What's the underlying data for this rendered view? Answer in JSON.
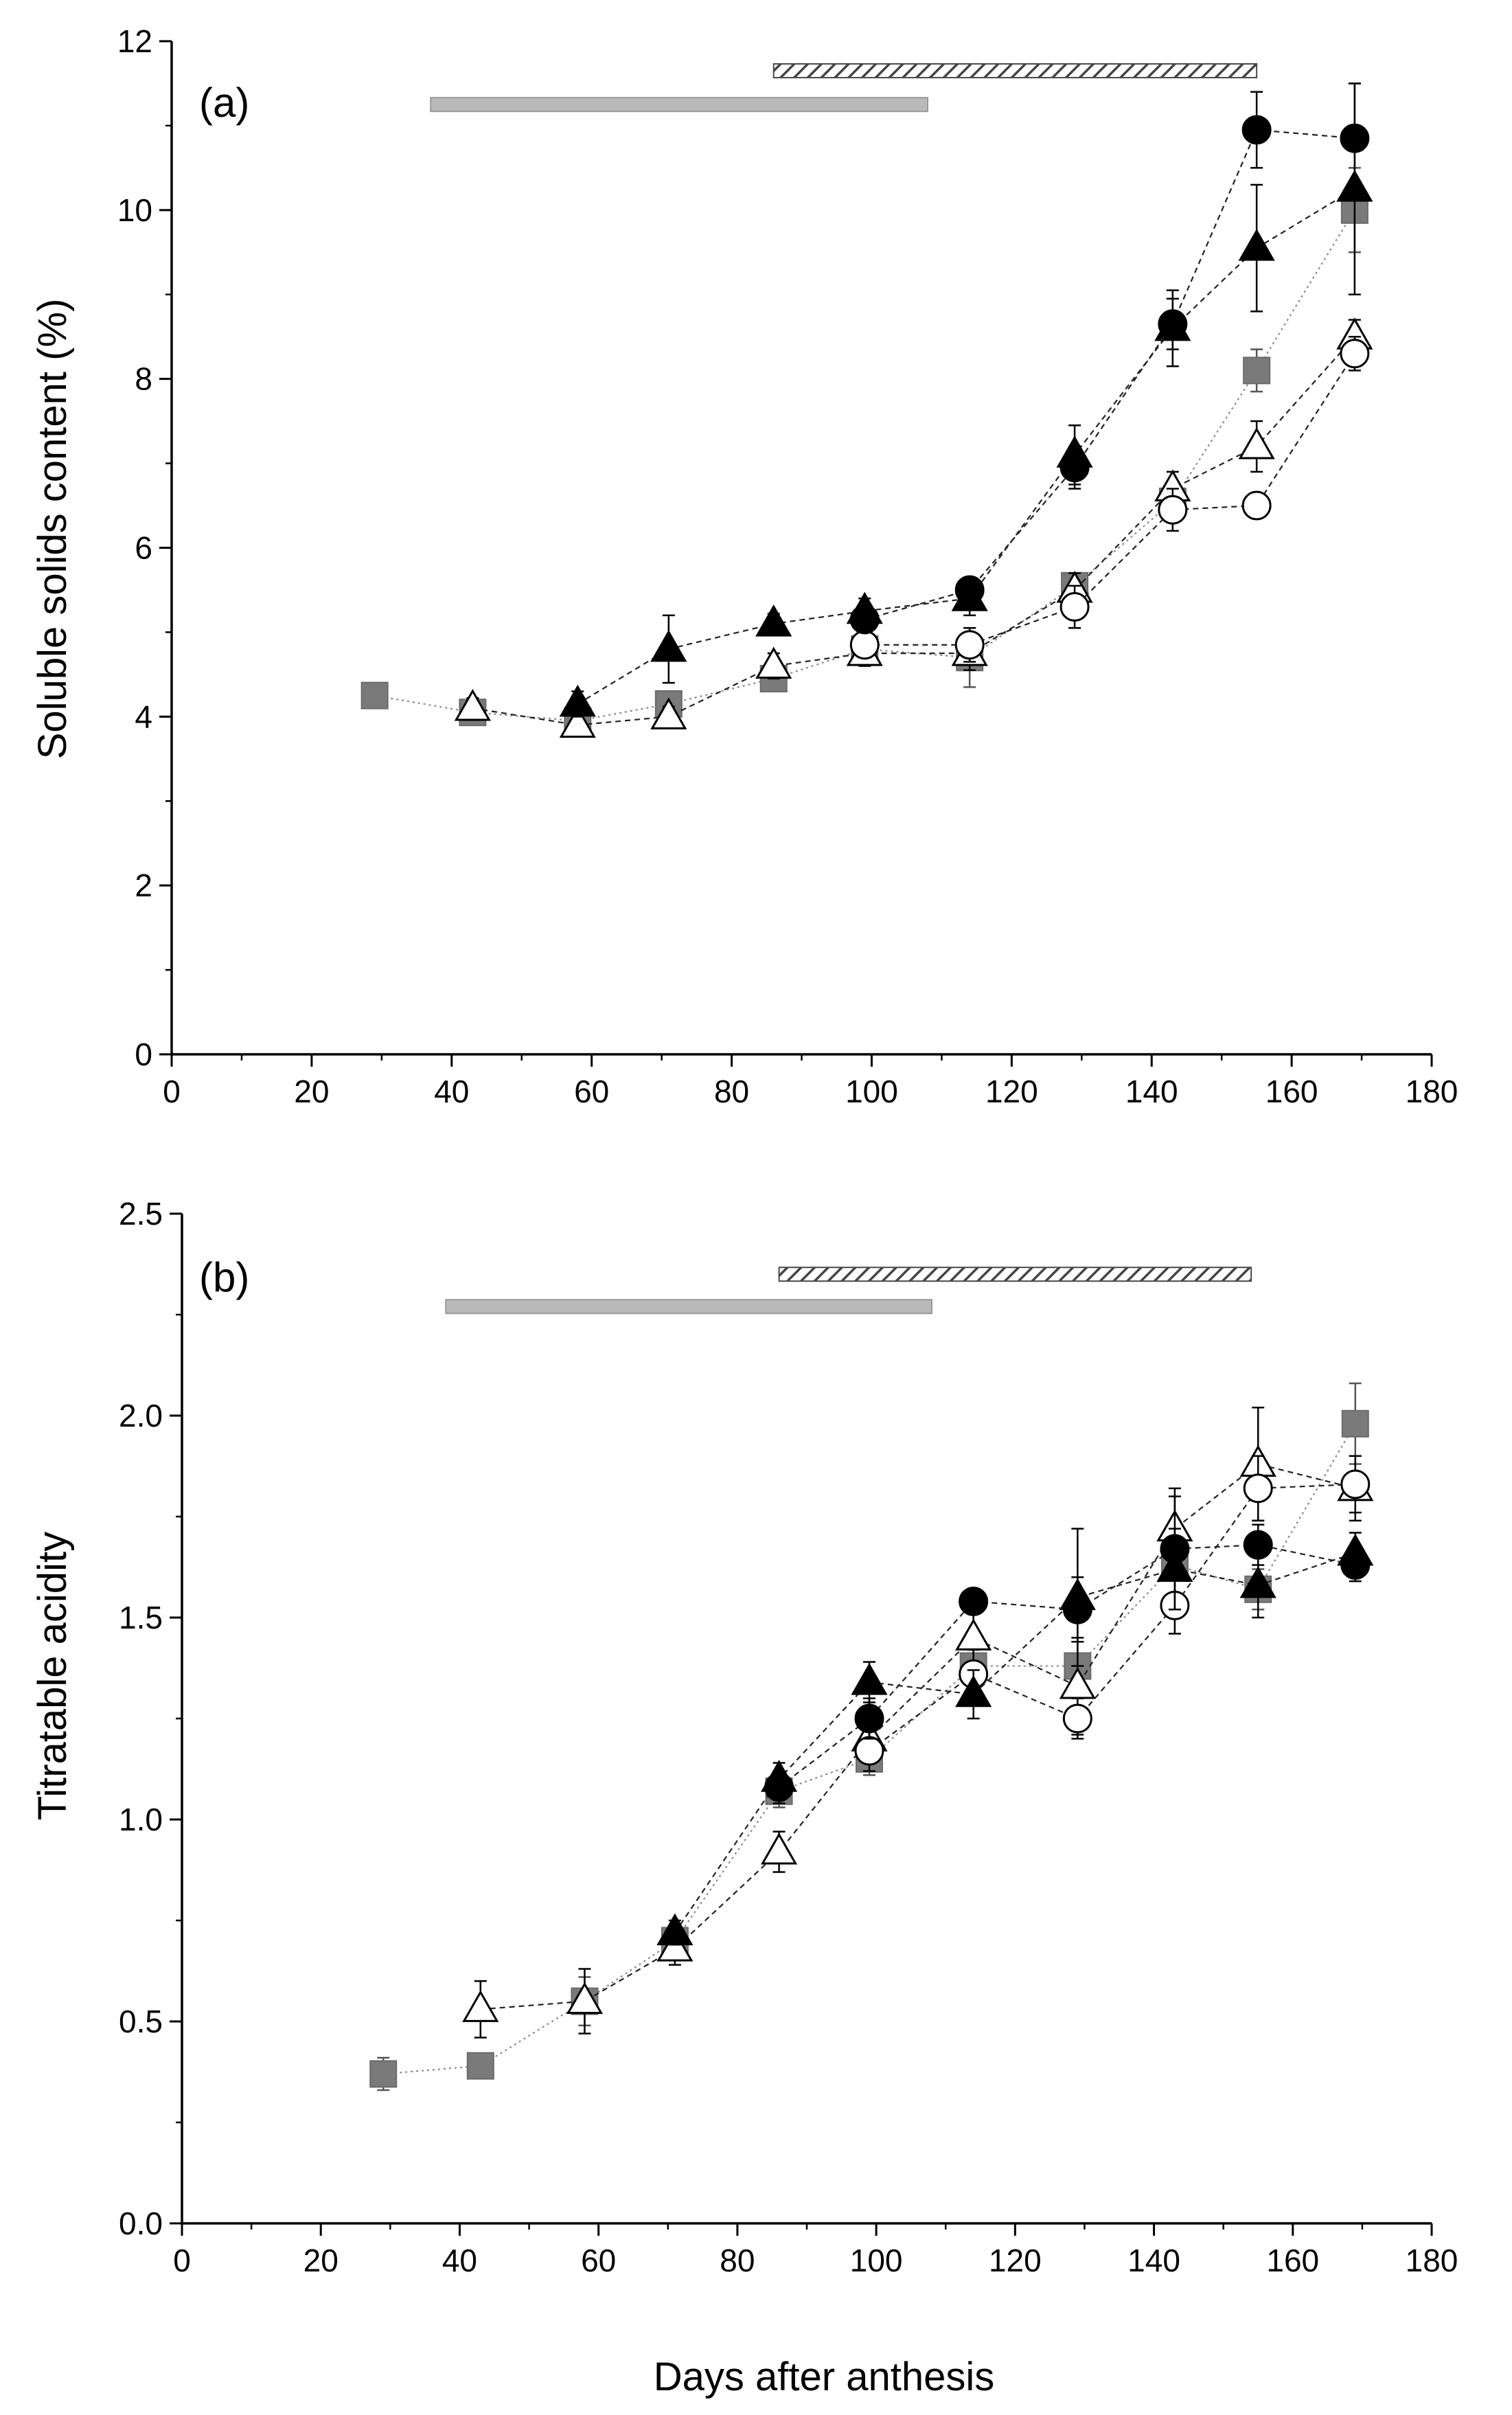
{
  "figure": {
    "xlabel": "Days after anthesis"
  },
  "chart_data": [
    {
      "type": "line",
      "panel_label": "(a)",
      "title": "",
      "xlabel": "",
      "ylabel": "Soluble solids content (%)",
      "xlim": [
        0,
        180
      ],
      "ylim": [
        0,
        12
      ],
      "xticks": [
        "0",
        "20",
        "40",
        "60",
        "80",
        "100",
        "120",
        "140",
        "160",
        "180"
      ],
      "yticks": [
        "0",
        "2",
        "4",
        "6",
        "8",
        "10",
        "12"
      ],
      "x_minor_step": 10,
      "y_minor_step": 1,
      "grid": false,
      "legend": "none",
      "bars": [
        {
          "style": "gray-solid",
          "x_start": 37,
          "x_end": 108,
          "y": 11.25,
          "color": "#b9b9b9"
        },
        {
          "style": "hatched",
          "x_start": 86,
          "x_end": 155,
          "y": 11.65,
          "color": "#4a4a4a"
        }
      ],
      "series": [
        {
          "marker": "square-gray",
          "color": "#7a7a7a",
          "x": [
            29,
            43,
            58,
            71,
            86,
            99,
            114,
            129,
            143,
            155,
            169
          ],
          "y": [
            4.25,
            4.05,
            3.95,
            4.15,
            4.45,
            4.8,
            4.7,
            5.55,
            6.55,
            8.1,
            10.0
          ],
          "err": [
            0.12,
            0.1,
            0.12,
            0.15,
            0.12,
            0.15,
            0.35,
            0.15,
            0.2,
            0.25,
            0.5
          ]
        },
        {
          "marker": "triangle-open",
          "color": "#000000",
          "x": [
            43,
            58,
            71,
            86,
            99,
            114,
            129,
            143,
            155,
            169
          ],
          "y": [
            4.1,
            3.9,
            4.0,
            4.6,
            4.75,
            4.75,
            5.5,
            6.7,
            7.2,
            8.5
          ],
          "err": [
            0.12,
            0.12,
            0.12,
            0.15,
            0.15,
            0.2,
            0.2,
            0.2,
            0.3,
            0.2
          ]
        },
        {
          "marker": "circle-open",
          "color": "#000000",
          "x": [
            99,
            114,
            129,
            143,
            155,
            169
          ],
          "y": [
            4.85,
            4.85,
            5.3,
            6.45,
            6.5,
            8.3
          ],
          "err": [
            0.15,
            0.2,
            0.25,
            0.25,
            0.15,
            0.2
          ]
        },
        {
          "marker": "triangle-filled",
          "color": "#000000",
          "x": [
            58,
            71,
            86,
            99,
            114,
            129,
            143,
            155,
            169
          ],
          "y": [
            4.15,
            4.8,
            5.1,
            5.25,
            5.4,
            7.1,
            8.6,
            9.55,
            10.25
          ],
          "err": [
            0.15,
            0.4,
            0.12,
            0.15,
            0.2,
            0.35,
            0.45,
            0.75,
            1.25
          ]
        },
        {
          "marker": "circle-filled",
          "color": "#000000",
          "x": [
            99,
            114,
            129,
            143,
            155,
            169
          ],
          "y": [
            5.15,
            5.5,
            6.95,
            8.65,
            10.95,
            10.85
          ],
          "err": [
            0.15,
            0.15,
            0.25,
            0.3,
            0.45,
            0.65
          ]
        }
      ]
    },
    {
      "type": "line",
      "panel_label": "(b)",
      "title": "",
      "xlabel": "Days after anthesis",
      "ylabel": "Titratable acidity",
      "xlim": [
        0,
        180
      ],
      "ylim": [
        0,
        2.5
      ],
      "xticks": [
        "0",
        "20",
        "40",
        "60",
        "80",
        "100",
        "120",
        "140",
        "160",
        "180"
      ],
      "yticks": [
        "0.0",
        "0.5",
        "1.0",
        "1.5",
        "2.0",
        "2.5"
      ],
      "x_minor_step": 10,
      "y_minor_step": 0.25,
      "grid": false,
      "legend": "none",
      "bars": [
        {
          "style": "gray-solid",
          "x_start": 38,
          "x_end": 108,
          "y": 2.27,
          "color": "#b9b9b9"
        },
        {
          "style": "hatched",
          "x_start": 86,
          "x_end": 154,
          "y": 2.35,
          "color": "#4a4a4a"
        }
      ],
      "series": [
        {
          "marker": "square-gray",
          "color": "#7a7a7a",
          "x": [
            29,
            43,
            58,
            71,
            86,
            99,
            114,
            129,
            143,
            155,
            169
          ],
          "y": [
            0.37,
            0.39,
            0.55,
            0.7,
            1.07,
            1.15,
            1.38,
            1.38,
            1.63,
            1.57,
            1.98
          ],
          "err": [
            0.04,
            0.03,
            0.06,
            0.03,
            0.04,
            0.04,
            0.06,
            0.06,
            0.1,
            0.05,
            0.1
          ]
        },
        {
          "marker": "triangle-open",
          "color": "#000000",
          "x": [
            43,
            58,
            71,
            86,
            99,
            114,
            129,
            143,
            155,
            169
          ],
          "y": [
            0.53,
            0.55,
            0.68,
            0.92,
            1.2,
            1.45,
            1.33,
            1.72,
            1.88,
            1.82
          ],
          "err": [
            0.07,
            0.08,
            0.04,
            0.05,
            0.06,
            0.1,
            0.12,
            0.08,
            0.14,
            0.08
          ]
        },
        {
          "marker": "circle-open",
          "color": "#000000",
          "x": [
            99,
            114,
            129,
            143,
            155,
            169
          ],
          "y": [
            1.17,
            1.36,
            1.25,
            1.53,
            1.82,
            1.83
          ],
          "err": [
            0.05,
            0.06,
            0.05,
            0.07,
            0.08,
            0.07
          ]
        },
        {
          "marker": "triangle-filled",
          "color": "#000000",
          "x": [
            71,
            86,
            99,
            114,
            129,
            143,
            155,
            169
          ],
          "y": [
            0.72,
            1.1,
            1.34,
            1.31,
            1.55,
            1.62,
            1.58,
            1.66
          ],
          "err": [
            0.03,
            0.04,
            0.05,
            0.06,
            0.17,
            0.1,
            0.08,
            0.05
          ]
        },
        {
          "marker": "circle-filled",
          "color": "#000000",
          "x": [
            86,
            99,
            114,
            129,
            143,
            155,
            169
          ],
          "y": [
            1.08,
            1.25,
            1.54,
            1.52,
            1.67,
            1.68,
            1.63
          ],
          "err": [
            0.04,
            0.05,
            0.03,
            0.08,
            0.15,
            0.05,
            0.04
          ]
        }
      ]
    }
  ]
}
